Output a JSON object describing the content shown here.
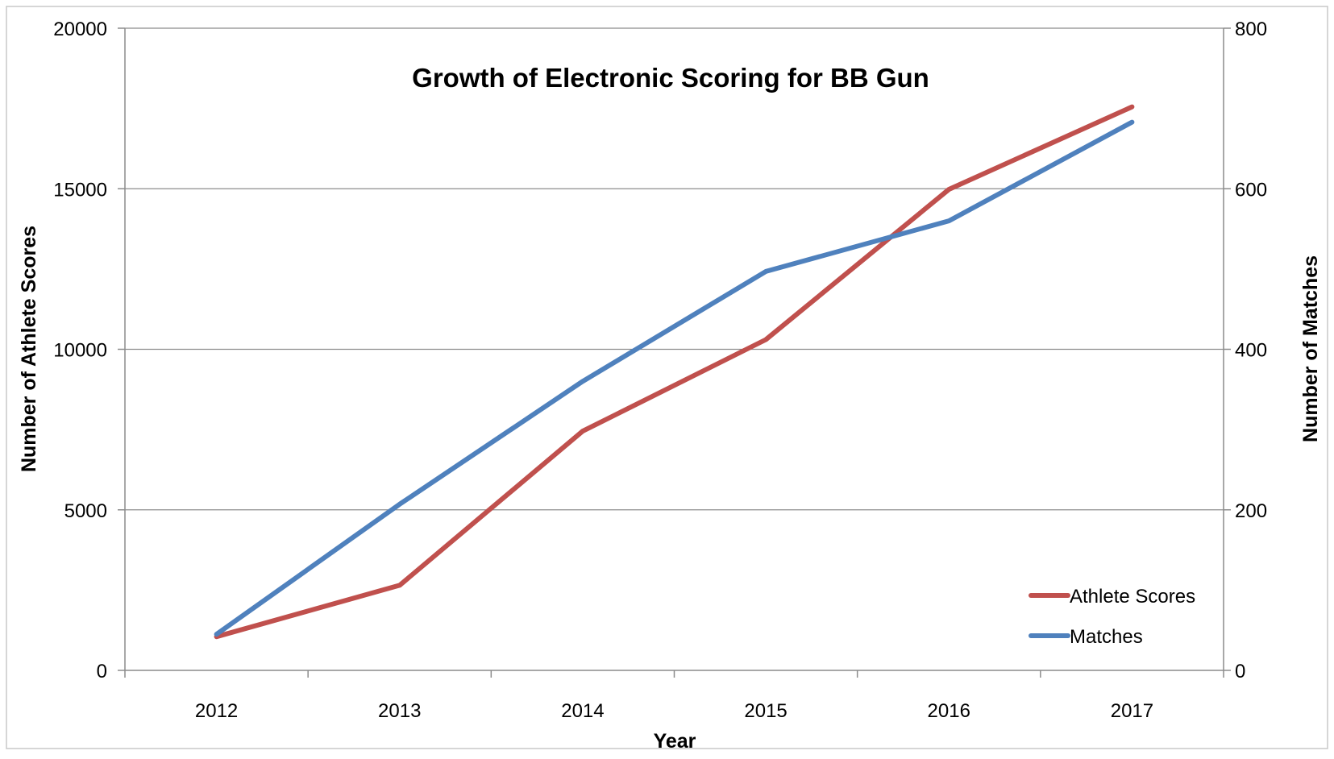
{
  "chart_data": {
    "type": "line",
    "title": "Growth of Electronic Scoring for BB Gun",
    "xlabel": "Year",
    "ylabel": "Number of Athlete Scores",
    "y2label": "Number of Matches",
    "categories": [
      "2012",
      "2013",
      "2014",
      "2015",
      "2016",
      "2017"
    ],
    "ylim": [
      0,
      20000
    ],
    "y2lim": [
      0,
      800
    ],
    "yticks": [
      "0",
      "5000",
      "10000",
      "15000",
      "20000"
    ],
    "y2ticks": [
      "0",
      "200",
      "400",
      "600",
      "800"
    ],
    "grid": true,
    "legend_position": "bottom-right",
    "series": [
      {
        "name": "Athlete Scores",
        "axis": "left",
        "color": "#c0504d",
        "values": [
          1050,
          2650,
          7450,
          10300,
          14980,
          17550
        ]
      },
      {
        "name": "Matches",
        "axis": "right",
        "color": "#4f81bd",
        "values": [
          45,
          207,
          360,
          497,
          560,
          683
        ]
      }
    ]
  }
}
